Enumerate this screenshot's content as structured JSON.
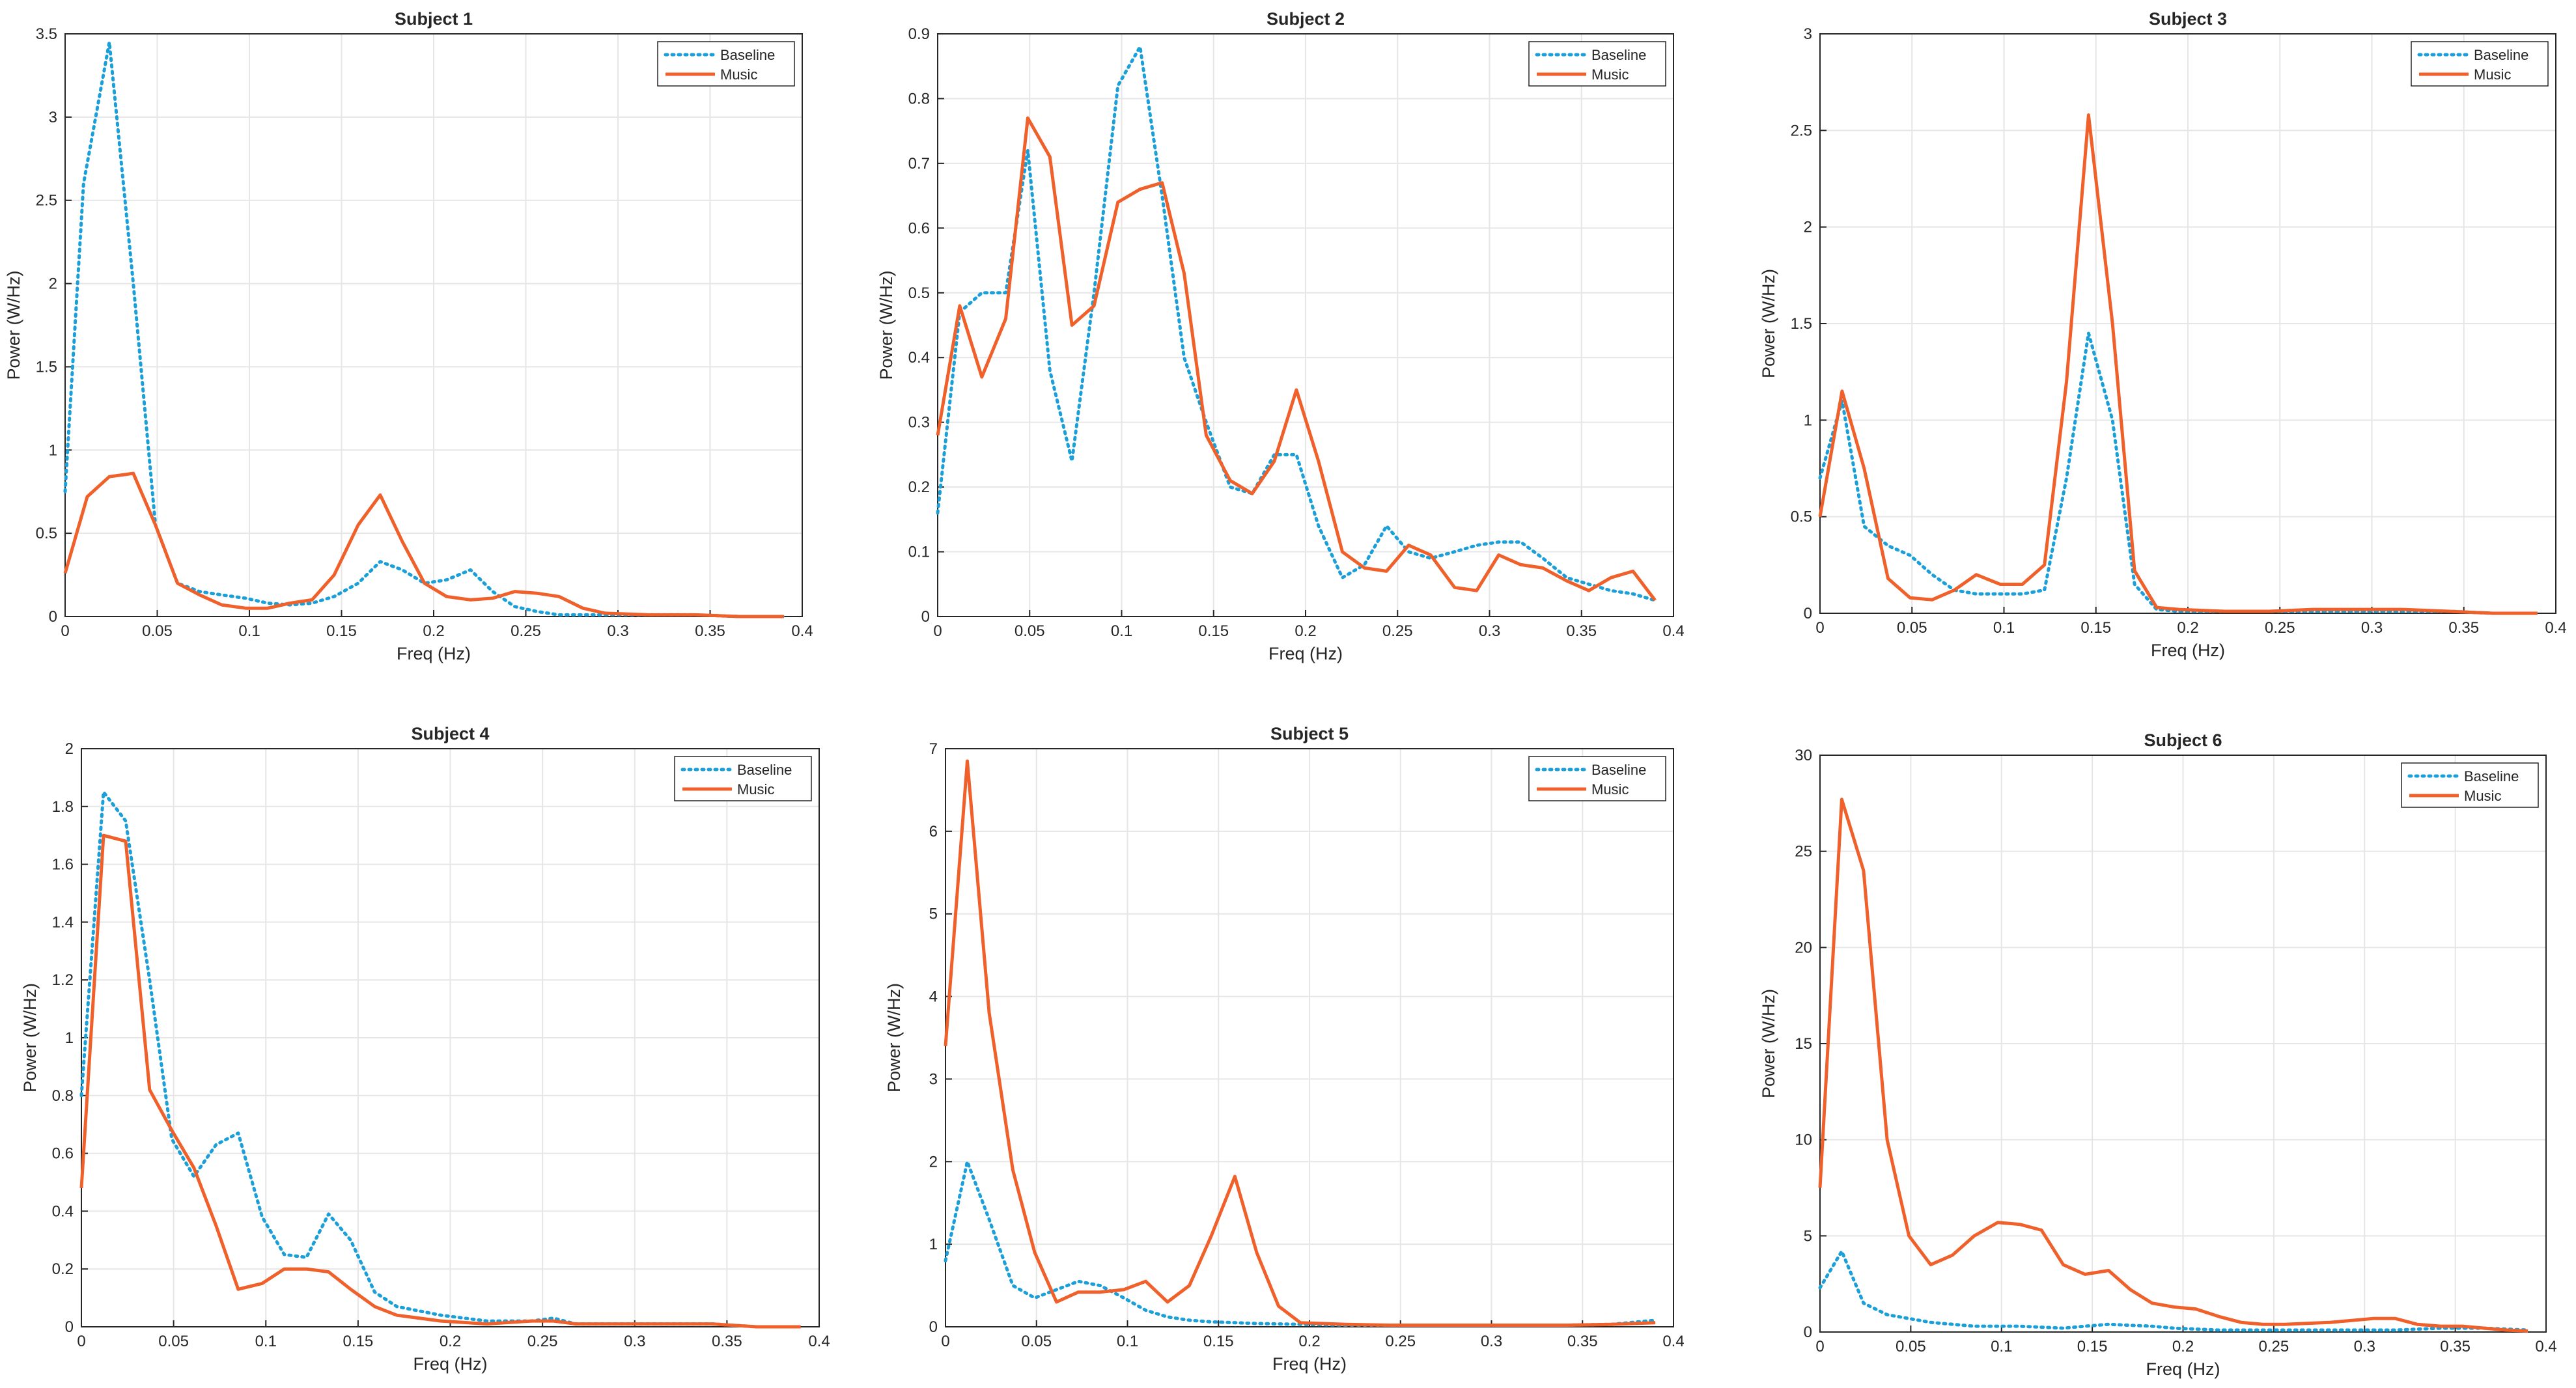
{
  "figure": {
    "colors": {
      "baseline": "#1a9fd9",
      "music": "#f0602a",
      "grid": "#e6e6e6",
      "axis": "#262626"
    }
  },
  "chart_data": [
    {
      "type": "line",
      "title": "Subject 1",
      "xlabel": "Freq (Hz)",
      "ylabel": "Power (W/Hz)",
      "xlim": [
        0,
        0.4
      ],
      "ylim": [
        0,
        3.5
      ],
      "xticks": [
        0,
        0.05,
        0.1,
        0.15,
        0.2,
        0.25,
        0.3,
        0.35,
        0.4
      ],
      "xtick_labels": [
        "0",
        "0.05",
        "0.1",
        "0.15",
        "0.2",
        "0.25",
        "0.3",
        "0.35",
        "0.4"
      ],
      "yticks": [
        0,
        0.5,
        1,
        1.5,
        2,
        2.5,
        3,
        3.5
      ],
      "ytick_labels": [
        "0",
        "0.5",
        "1",
        "1.5",
        "2",
        "2.5",
        "3",
        "3.5"
      ],
      "grid": true,
      "legend": "top-right",
      "series": [
        {
          "name": "Baseline",
          "style": "dotted",
          "x": [
            0,
            0.01,
            0.024,
            0.037,
            0.049,
            0.061,
            0.073,
            0.085,
            0.098,
            0.11,
            0.122,
            0.134,
            0.146,
            0.159,
            0.171,
            0.183,
            0.195,
            0.207,
            0.22,
            0.232,
            0.244,
            0.256,
            0.268,
            0.281,
            0.293,
            0.317,
            0.342,
            0.366,
            0.39
          ],
          "y": [
            0.75,
            2.6,
            3.45,
            2.0,
            0.55,
            0.2,
            0.15,
            0.13,
            0.11,
            0.08,
            0.07,
            0.08,
            0.12,
            0.2,
            0.33,
            0.28,
            0.2,
            0.22,
            0.28,
            0.15,
            0.06,
            0.03,
            0.01,
            0.01,
            0.01,
            0.01,
            0.01,
            0.0,
            0.0
          ]
        },
        {
          "name": "Music",
          "style": "solid",
          "x": [
            0,
            0.012,
            0.024,
            0.037,
            0.049,
            0.061,
            0.073,
            0.085,
            0.098,
            0.11,
            0.122,
            0.134,
            0.146,
            0.159,
            0.171,
            0.183,
            0.195,
            0.207,
            0.22,
            0.232,
            0.244,
            0.256,
            0.268,
            0.281,
            0.293,
            0.317,
            0.342,
            0.366,
            0.39
          ],
          "y": [
            0.26,
            0.72,
            0.84,
            0.86,
            0.55,
            0.2,
            0.13,
            0.07,
            0.05,
            0.05,
            0.08,
            0.1,
            0.25,
            0.55,
            0.73,
            0.45,
            0.2,
            0.12,
            0.1,
            0.11,
            0.15,
            0.14,
            0.12,
            0.05,
            0.02,
            0.01,
            0.01,
            0.0,
            0.0
          ]
        }
      ]
    },
    {
      "type": "line",
      "title": "Subject 2",
      "xlabel": "Freq (Hz)",
      "ylabel": "Power (W/Hz)",
      "xlim": [
        0,
        0.4
      ],
      "ylim": [
        0,
        0.9
      ],
      "xticks": [
        0,
        0.05,
        0.1,
        0.15,
        0.2,
        0.25,
        0.3,
        0.35,
        0.4
      ],
      "xtick_labels": [
        "0",
        "0.05",
        "0.1",
        "0.15",
        "0.2",
        "0.25",
        "0.3",
        "0.35",
        "0.4"
      ],
      "yticks": [
        0,
        0.1,
        0.2,
        0.3,
        0.4,
        0.5,
        0.6,
        0.7,
        0.8,
        0.9
      ],
      "ytick_labels": [
        "0",
        "0.1",
        "0.2",
        "0.3",
        "0.4",
        "0.5",
        "0.6",
        "0.7",
        "0.8",
        "0.9"
      ],
      "grid": true,
      "legend": "top-right",
      "series": [
        {
          "name": "Baseline",
          "style": "dotted",
          "x": [
            0,
            0.012,
            0.024,
            0.037,
            0.049,
            0.061,
            0.073,
            0.085,
            0.098,
            0.11,
            0.122,
            0.134,
            0.146,
            0.159,
            0.171,
            0.183,
            0.195,
            0.207,
            0.22,
            0.232,
            0.244,
            0.256,
            0.268,
            0.281,
            0.293,
            0.305,
            0.317,
            0.329,
            0.342,
            0.354,
            0.366,
            0.378,
            0.39
          ],
          "y": [
            0.16,
            0.47,
            0.5,
            0.5,
            0.72,
            0.38,
            0.24,
            0.5,
            0.82,
            0.88,
            0.65,
            0.4,
            0.3,
            0.2,
            0.19,
            0.25,
            0.25,
            0.14,
            0.06,
            0.08,
            0.14,
            0.1,
            0.09,
            0.1,
            0.11,
            0.115,
            0.115,
            0.09,
            0.06,
            0.05,
            0.04,
            0.035,
            0.025
          ]
        },
        {
          "name": "Music",
          "style": "solid",
          "x": [
            0,
            0.012,
            0.024,
            0.037,
            0.049,
            0.061,
            0.073,
            0.085,
            0.098,
            0.11,
            0.122,
            0.134,
            0.146,
            0.159,
            0.171,
            0.183,
            0.195,
            0.207,
            0.22,
            0.232,
            0.244,
            0.256,
            0.268,
            0.281,
            0.293,
            0.305,
            0.317,
            0.329,
            0.342,
            0.354,
            0.366,
            0.378,
            0.39
          ],
          "y": [
            0.28,
            0.48,
            0.37,
            0.46,
            0.77,
            0.71,
            0.45,
            0.48,
            0.64,
            0.66,
            0.67,
            0.53,
            0.28,
            0.21,
            0.19,
            0.24,
            0.35,
            0.24,
            0.1,
            0.075,
            0.07,
            0.11,
            0.095,
            0.045,
            0.04,
            0.095,
            0.08,
            0.075,
            0.055,
            0.04,
            0.06,
            0.07,
            0.025
          ]
        }
      ]
    },
    {
      "type": "line",
      "title": "Subject 3",
      "xlabel": "Freq (Hz)",
      "ylabel": "Power (W/Hz)",
      "xlim": [
        0,
        0.4
      ],
      "ylim": [
        0,
        3
      ],
      "xticks": [
        0,
        0.05,
        0.1,
        0.15,
        0.2,
        0.25,
        0.3,
        0.35,
        0.4
      ],
      "xtick_labels": [
        "0",
        "0.05",
        "0.1",
        "0.15",
        "0.2",
        "0.25",
        "0.3",
        "0.35",
        "0.4"
      ],
      "yticks": [
        0,
        0.5,
        1,
        1.5,
        2,
        2.5,
        3
      ],
      "ytick_labels": [
        "0",
        "0.5",
        "1",
        "1.5",
        "2",
        "2.5",
        "3"
      ],
      "grid": true,
      "legend": "top-right",
      "series": [
        {
          "name": "Baseline",
          "style": "dotted",
          "x": [
            0,
            0.012,
            0.024,
            0.037,
            0.049,
            0.061,
            0.073,
            0.085,
            0.098,
            0.11,
            0.122,
            0.134,
            0.146,
            0.159,
            0.171,
            0.183,
            0.195,
            0.22,
            0.244,
            0.268,
            0.293,
            0.317,
            0.342,
            0.366,
            0.39
          ],
          "y": [
            0.7,
            1.1,
            0.45,
            0.35,
            0.3,
            0.2,
            0.12,
            0.1,
            0.1,
            0.1,
            0.12,
            0.7,
            1.45,
            1.0,
            0.15,
            0.02,
            0.01,
            0.01,
            0.01,
            0.01,
            0.01,
            0.01,
            0.01,
            0.0,
            0.0
          ]
        },
        {
          "name": "Music",
          "style": "solid",
          "x": [
            0,
            0.012,
            0.024,
            0.037,
            0.049,
            0.061,
            0.073,
            0.085,
            0.098,
            0.11,
            0.122,
            0.134,
            0.146,
            0.159,
            0.171,
            0.183,
            0.195,
            0.22,
            0.244,
            0.268,
            0.293,
            0.317,
            0.342,
            0.366,
            0.39
          ],
          "y": [
            0.5,
            1.15,
            0.75,
            0.18,
            0.08,
            0.07,
            0.12,
            0.2,
            0.15,
            0.15,
            0.25,
            1.2,
            2.58,
            1.5,
            0.22,
            0.03,
            0.02,
            0.01,
            0.01,
            0.02,
            0.02,
            0.02,
            0.01,
            0.0,
            0.0
          ]
        }
      ]
    },
    {
      "type": "line",
      "title": "Subject 4",
      "xlabel": "Freq (Hz)",
      "ylabel": "Power (W/Hz)",
      "xlim": [
        0,
        0.4
      ],
      "ylim": [
        0,
        2
      ],
      "xticks": [
        0,
        0.05,
        0.1,
        0.15,
        0.2,
        0.25,
        0.3,
        0.35,
        0.4
      ],
      "xtick_labels": [
        "0",
        "0.05",
        "0.1",
        "0.15",
        "0.2",
        "0.25",
        "0.3",
        "0.35",
        "0.4"
      ],
      "yticks": [
        0,
        0.2,
        0.4,
        0.6,
        0.8,
        1,
        1.2,
        1.4,
        1.6,
        1.8,
        2
      ],
      "ytick_labels": [
        "0",
        "0.2",
        "0.4",
        "0.6",
        "0.8",
        "1",
        "1.2",
        "1.4",
        "1.6",
        "1.8",
        "2"
      ],
      "grid": true,
      "legend": "top-right",
      "series": [
        {
          "name": "Baseline",
          "style": "dotted",
          "x": [
            0,
            0.012,
            0.024,
            0.037,
            0.049,
            0.061,
            0.073,
            0.085,
            0.098,
            0.11,
            0.122,
            0.134,
            0.146,
            0.159,
            0.171,
            0.195,
            0.22,
            0.244,
            0.256,
            0.268,
            0.293,
            0.317,
            0.342,
            0.366,
            0.39
          ],
          "y": [
            0.8,
            1.85,
            1.75,
            1.2,
            0.65,
            0.52,
            0.63,
            0.67,
            0.38,
            0.25,
            0.24,
            0.39,
            0.3,
            0.12,
            0.07,
            0.04,
            0.02,
            0.02,
            0.03,
            0.01,
            0.01,
            0.01,
            0.01,
            0.0,
            0.0
          ]
        },
        {
          "name": "Music",
          "style": "solid",
          "x": [
            0,
            0.012,
            0.024,
            0.037,
            0.049,
            0.061,
            0.073,
            0.085,
            0.098,
            0.11,
            0.122,
            0.134,
            0.146,
            0.159,
            0.171,
            0.195,
            0.22,
            0.244,
            0.256,
            0.268,
            0.293,
            0.317,
            0.342,
            0.366,
            0.39
          ],
          "y": [
            0.48,
            1.7,
            1.68,
            0.82,
            0.68,
            0.55,
            0.35,
            0.13,
            0.15,
            0.2,
            0.2,
            0.19,
            0.13,
            0.07,
            0.04,
            0.02,
            0.01,
            0.02,
            0.02,
            0.01,
            0.01,
            0.01,
            0.01,
            0.0,
            0.0
          ]
        }
      ]
    },
    {
      "type": "line",
      "title": "Subject 5",
      "xlabel": "Freq (Hz)",
      "ylabel": "Power (W/Hz)",
      "xlim": [
        0,
        0.4
      ],
      "ylim": [
        0,
        7
      ],
      "xticks": [
        0,
        0.05,
        0.1,
        0.15,
        0.2,
        0.25,
        0.3,
        0.35,
        0.4
      ],
      "xtick_labels": [
        "0",
        "0.05",
        "0.1",
        "0.15",
        "0.2",
        "0.25",
        "0.3",
        "0.35",
        "0.4"
      ],
      "yticks": [
        0,
        1,
        2,
        3,
        4,
        5,
        6,
        7
      ],
      "ytick_labels": [
        "0",
        "1",
        "2",
        "3",
        "4",
        "5",
        "6",
        "7"
      ],
      "grid": true,
      "legend": "top-right",
      "series": [
        {
          "name": "Baseline",
          "style": "dotted",
          "x": [
            0,
            0.012,
            0.024,
            0.037,
            0.049,
            0.061,
            0.073,
            0.085,
            0.098,
            0.11,
            0.122,
            0.134,
            0.146,
            0.159,
            0.171,
            0.195,
            0.22,
            0.244,
            0.268,
            0.293,
            0.317,
            0.342,
            0.366,
            0.39
          ],
          "y": [
            0.8,
            2.0,
            1.3,
            0.5,
            0.35,
            0.45,
            0.55,
            0.5,
            0.35,
            0.2,
            0.12,
            0.08,
            0.06,
            0.05,
            0.04,
            0.03,
            0.02,
            0.02,
            0.02,
            0.02,
            0.02,
            0.02,
            0.03,
            0.08
          ]
        },
        {
          "name": "Music",
          "style": "solid",
          "x": [
            0,
            0.012,
            0.024,
            0.037,
            0.049,
            0.061,
            0.073,
            0.085,
            0.098,
            0.11,
            0.122,
            0.134,
            0.146,
            0.159,
            0.171,
            0.183,
            0.195,
            0.22,
            0.244,
            0.268,
            0.293,
            0.317,
            0.342,
            0.366,
            0.39
          ],
          "y": [
            3.4,
            6.85,
            3.8,
            1.9,
            0.9,
            0.3,
            0.42,
            0.42,
            0.45,
            0.55,
            0.3,
            0.5,
            1.1,
            1.82,
            0.9,
            0.25,
            0.05,
            0.03,
            0.02,
            0.02,
            0.02,
            0.02,
            0.02,
            0.03,
            0.05
          ]
        }
      ]
    },
    {
      "type": "line",
      "title": "Subject 6",
      "xlabel": "Freq (Hz)",
      "ylabel": "Power (W/Hz)",
      "xlim": [
        0,
        0.4
      ],
      "ylim": [
        0,
        30
      ],
      "xticks": [
        0,
        0.05,
        0.1,
        0.15,
        0.2,
        0.25,
        0.3,
        0.35,
        0.4
      ],
      "xtick_labels": [
        "0",
        "0.05",
        "0.1",
        "0.15",
        "0.2",
        "0.25",
        "0.3",
        "0.35",
        "0.4"
      ],
      "yticks": [
        0,
        5,
        10,
        15,
        20,
        25,
        30
      ],
      "ytick_labels": [
        "0",
        "5",
        "10",
        "15",
        "20",
        "25",
        "30"
      ],
      "grid": true,
      "legend": "top-right",
      "series": [
        {
          "name": "Baseline",
          "style": "dotted",
          "x": [
            0,
            0.012,
            0.024,
            0.037,
            0.049,
            0.061,
            0.073,
            0.085,
            0.098,
            0.11,
            0.122,
            0.134,
            0.146,
            0.159,
            0.171,
            0.183,
            0.195,
            0.22,
            0.244,
            0.268,
            0.293,
            0.317,
            0.342,
            0.366,
            0.39
          ],
          "y": [
            2.3,
            4.2,
            1.5,
            0.9,
            0.7,
            0.5,
            0.4,
            0.3,
            0.3,
            0.3,
            0.25,
            0.2,
            0.3,
            0.4,
            0.35,
            0.3,
            0.2,
            0.1,
            0.1,
            0.1,
            0.1,
            0.1,
            0.2,
            0.2,
            0.1
          ]
        },
        {
          "name": "Music",
          "style": "solid",
          "x": [
            0,
            0.012,
            0.024,
            0.037,
            0.049,
            0.061,
            0.073,
            0.085,
            0.098,
            0.11,
            0.122,
            0.134,
            0.146,
            0.159,
            0.171,
            0.183,
            0.195,
            0.207,
            0.22,
            0.232,
            0.244,
            0.256,
            0.268,
            0.281,
            0.293,
            0.305,
            0.317,
            0.329,
            0.342,
            0.354,
            0.366,
            0.378,
            0.39
          ],
          "y": [
            7.5,
            27.7,
            24.0,
            10.0,
            5.0,
            3.5,
            4.0,
            5.0,
            5.7,
            5.6,
            5.3,
            3.5,
            3.0,
            3.2,
            2.2,
            1.5,
            1.3,
            1.2,
            0.8,
            0.5,
            0.4,
            0.4,
            0.45,
            0.5,
            0.6,
            0.7,
            0.7,
            0.4,
            0.3,
            0.3,
            0.2,
            0.1,
            0.05
          ]
        }
      ]
    }
  ]
}
